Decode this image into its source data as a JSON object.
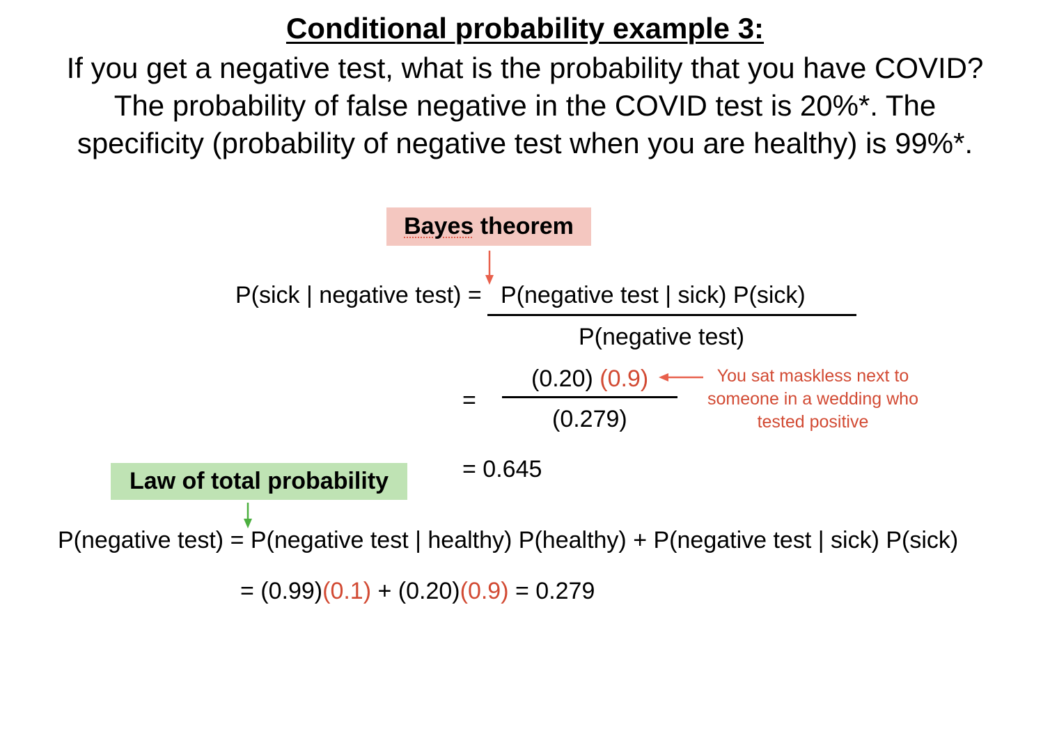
{
  "title": "Conditional probability example 3:",
  "intro": [
    "If you get a negative test, what is the probability that you have COVID?",
    "The probability of false negative in the COVID test is 20%*. The",
    "specificity (probability of negative test when you are healthy) is 99%*."
  ],
  "bayes": {
    "label_word": "Bayes",
    "label_rest": " theorem",
    "lhs": "P(sick | negative test) =",
    "numerator": "P(negative test | sick) P(sick)",
    "denominator": "P(negative test)",
    "eq_sign": "=",
    "num_black": "(0.20) ",
    "num_red": "(0.9)",
    "den_value": "(0.279)",
    "result": "= 0.645",
    "note": "You sat maskless next to someone in a wedding who tested positive"
  },
  "total": {
    "label": "Law of total probability",
    "lhs": "P(negative test) = P(negative test | healthy) P(healthy) + P(negative test | sick) P(sick)",
    "calc": {
      "p1": "= (0.99)",
      "r1": "(0.1)",
      "p2": " + (0.20)",
      "r2": "(0.9)",
      "p3": " = 0.279"
    }
  },
  "colors": {
    "accent_red": "#d24a33",
    "bayes_box": "#f4c7c0",
    "law_box": "#bfe3b4",
    "arrow_red": "#e8604c",
    "arrow_green": "#4caf3f"
  }
}
